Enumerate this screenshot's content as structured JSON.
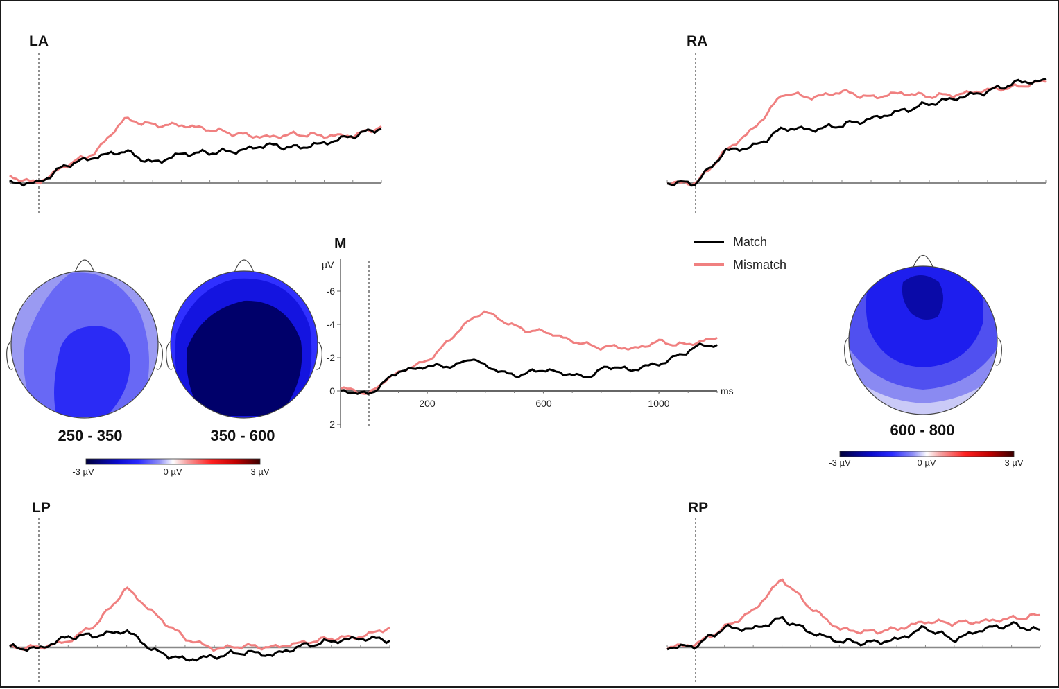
{
  "chart_data": {
    "type": "line",
    "series_names": [
      "Match",
      "Mismatch"
    ],
    "colors": {
      "match": "#000000",
      "mismatch": "#f08080",
      "baseline": "#888888"
    },
    "main_panel": {
      "label": "M",
      "ylabel": "µV",
      "xlabel": "ms",
      "ytick_labels": [
        "-6",
        "-4",
        "-2",
        "0",
        "2"
      ],
      "ytick_values": [
        -6,
        -4,
        -2,
        0,
        2
      ],
      "xtick_labels": [
        "200",
        "600",
        "1000"
      ],
      "xtick_values": [
        200,
        600,
        1000
      ],
      "xlim": [
        -100,
        1200
      ],
      "ylim": [
        2,
        -8
      ],
      "note": "negative plotted up"
    },
    "small_panels": [
      {
        "label": "LA",
        "x": [
          -100,
          0,
          100,
          200,
          300,
          400,
          500,
          600,
          700,
          800,
          900,
          1000,
          1100,
          1200
        ],
        "match": [
          0,
          0,
          1.2,
          1.7,
          2.1,
          1.3,
          1.9,
          2.0,
          2.1,
          2.5,
          2.3,
          2.6,
          3.1,
          3.6
        ],
        "mismatch": [
          0.4,
          0,
          1.2,
          2.0,
          4.2,
          3.8,
          3.8,
          3.5,
          3.2,
          3.0,
          3.2,
          3.1,
          3.1,
          3.7
        ]
      },
      {
        "label": "RA",
        "x": [
          -100,
          0,
          100,
          200,
          300,
          400,
          500,
          600,
          700,
          800,
          900,
          1000,
          1100,
          1200
        ],
        "match": [
          0,
          0,
          2.1,
          2.4,
          3.6,
          3.5,
          3.8,
          4.2,
          4.7,
          5.2,
          5.6,
          6.0,
          6.6,
          6.7
        ],
        "mismatch": [
          0,
          0,
          2.1,
          3.6,
          5.9,
          5.6,
          6.0,
          5.6,
          5.9,
          5.7,
          5.8,
          6.1,
          6.3,
          6.7
        ]
      },
      {
        "label": "LP",
        "x": [
          -100,
          0,
          100,
          200,
          300,
          400,
          500,
          600,
          700,
          800,
          900,
          1000,
          1100,
          1200
        ],
        "match": [
          0,
          -0.1,
          0.7,
          0.8,
          1.1,
          -0.3,
          -0.8,
          -0.6,
          -0.3,
          -0.5,
          0.1,
          0.4,
          0.6,
          0.5
        ],
        "mismatch": [
          0,
          0,
          0.4,
          1.6,
          3.9,
          2.1,
          0.6,
          -0.1,
          0.1,
          0.0,
          0.3,
          0.6,
          0.7,
          1.3
        ]
      },
      {
        "label": "RP",
        "x": [
          -100,
          0,
          100,
          200,
          300,
          400,
          500,
          600,
          700,
          800,
          900,
          1000,
          1100,
          1200
        ],
        "match": [
          0,
          0.1,
          1.3,
          1.2,
          1.9,
          1.0,
          0.4,
          0.3,
          0.5,
          1.3,
          0.5,
          1.2,
          1.5,
          1.1
        ],
        "mismatch": [
          0,
          0.2,
          1.3,
          2.4,
          4.5,
          2.6,
          1.2,
          1.0,
          1.2,
          1.7,
          1.6,
          1.7,
          1.9,
          2.1
        ]
      }
    ],
    "main_series": {
      "x": [
        -100,
        -50,
        0,
        50,
        100,
        150,
        200,
        250,
        300,
        350,
        400,
        450,
        500,
        550,
        600,
        650,
        700,
        750,
        800,
        850,
        900,
        950,
        1000,
        1050,
        1100,
        1150,
        1200
      ],
      "match": [
        0,
        0.1,
        0.2,
        -0.5,
        -1.2,
        -1.3,
        -1.5,
        -1.5,
        -1.5,
        -2.0,
        -1.5,
        -1.2,
        -0.9,
        -1.1,
        -1.3,
        -1.1,
        -1.0,
        -0.8,
        -1.3,
        -1.5,
        -1.2,
        -1.5,
        -1.6,
        -2.0,
        -2.4,
        -2.8,
        -2.7
      ],
      "mismatch": [
        -0.2,
        0,
        0.2,
        -0.6,
        -1.1,
        -1.5,
        -1.8,
        -2.6,
        -3.5,
        -4.3,
        -4.8,
        -4.3,
        -3.9,
        -3.6,
        -3.6,
        -3.3,
        -3.0,
        -2.8,
        -2.6,
        -2.7,
        -2.5,
        -2.7,
        -3.0,
        -2.8,
        -2.8,
        -3.0,
        -3.2
      ]
    },
    "legend": {
      "match_label": "Match",
      "mismatch_label": "Mismatch"
    },
    "topomaps": {
      "labels": [
        "250 - 350",
        "350 - 600",
        "600 - 800"
      ],
      "colorbar_labels": [
        "-3 µV",
        "0 µV",
        "3 µV"
      ],
      "colorbar_range": [
        -3,
        3
      ]
    }
  }
}
